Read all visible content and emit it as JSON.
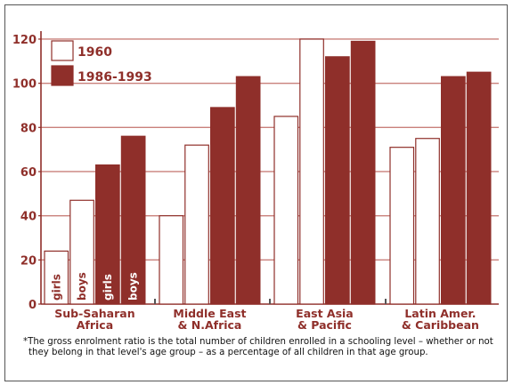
{
  "chart_data": {
    "type": "bar",
    "categories": [
      "Sub-Saharan Africa",
      "Middle East & N.Africa",
      "East Asia & Pacific",
      "Latin Amer. & Caribbean"
    ],
    "category_labels": [
      [
        "Sub-Saharan",
        "Africa"
      ],
      [
        "Middle East",
        "& N.Africa"
      ],
      [
        "East Asia",
        "& Pacific"
      ],
      [
        "Latin Amer.",
        "& Caribbean"
      ]
    ],
    "bar_order_within_group": [
      "girls 1960",
      "boys 1960",
      "girls 1986-1993",
      "boys 1986-1993"
    ],
    "bar_labels": [
      "girls",
      "boys",
      "girls",
      "boys"
    ],
    "series": [
      {
        "name": "1960",
        "gender": "girls",
        "values": [
          24,
          40,
          85,
          71
        ]
      },
      {
        "name": "1960",
        "gender": "boys",
        "values": [
          47,
          72,
          120,
          75
        ]
      },
      {
        "name": "1986-1993",
        "gender": "girls",
        "values": [
          63,
          89,
          112,
          103
        ]
      },
      {
        "name": "1986-1993",
        "gender": "boys",
        "values": [
          76,
          103,
          119,
          105
        ]
      }
    ],
    "legend": [
      {
        "label": "1960",
        "color": "#ffffff"
      },
      {
        "label": "1986-1993",
        "color": "#8f2f2a"
      }
    ],
    "legend_position": "top-left",
    "yticks": [
      0,
      20,
      40,
      60,
      80,
      100,
      120
    ],
    "ylim": [
      0,
      122
    ],
    "grid": true,
    "title": "",
    "xlabel": "",
    "ylabel": ""
  },
  "colors": {
    "accent": "#8f2f2a",
    "outline": "#8f2f2a",
    "open_bar": "#ffffff",
    "gridline": "#c9807b"
  },
  "footnote": "*The gross enrolment ratio is the total number of children enrolled in a schooling level – whether or not they belong in that level's age group – as a percentage of all children in that age group."
}
